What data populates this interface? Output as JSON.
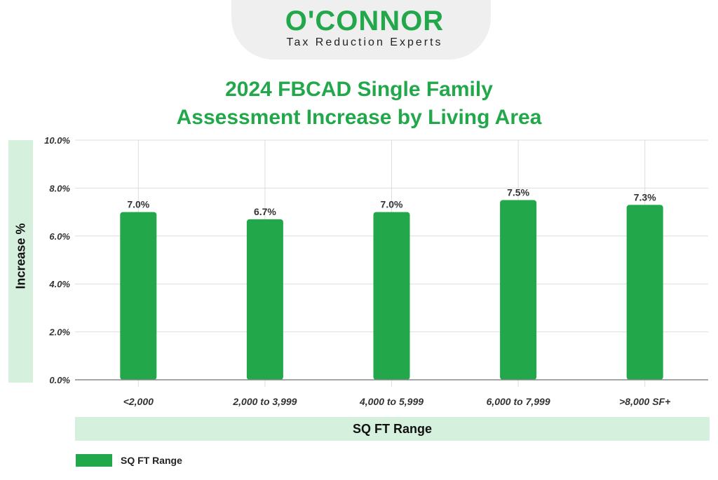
{
  "logo": {
    "name": "O'CONNOR",
    "tagline": "Tax Reduction Experts"
  },
  "chart_data": {
    "type": "bar",
    "title_line1": "2024 FBCAD Single Family",
    "title_line2": "Assessment Increase by Living Area",
    "categories": [
      "<2,000",
      "2,000 to 3,999",
      "4,000 to 5,999",
      "6,000 to 7,999",
      ">8,000 SF+"
    ],
    "values": [
      7.0,
      6.7,
      7.0,
      7.5,
      7.3
    ],
    "data_labels": [
      "7.0%",
      "6.7%",
      "7.0%",
      "7.5%",
      "7.3%"
    ],
    "xlabel": "SQ FT Range",
    "ylabel": "Increase %",
    "ylim": [
      0,
      10
    ],
    "yticks": [
      "0.0%",
      "2.0%",
      "4.0%",
      "6.0%",
      "8.0%",
      "10.0%"
    ],
    "legend": [
      {
        "name": "SQ FT Range",
        "color": "#22a84a"
      }
    ],
    "legend_position": "bottom-left",
    "grid": true
  }
}
